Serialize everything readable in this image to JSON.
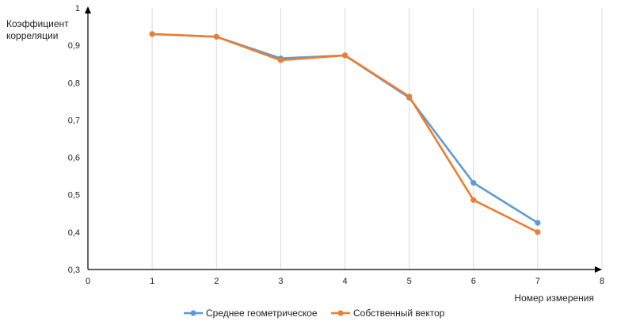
{
  "chart_data": {
    "type": "line",
    "xlabel": "Номер измерения",
    "ylabel": [
      "Коэффициент",
      "корреляции"
    ],
    "xlim": [
      0,
      8
    ],
    "ylim": [
      0.3,
      1
    ],
    "x_ticks": [
      "0",
      "1",
      "2",
      "3",
      "4",
      "5",
      "6",
      "7",
      "8"
    ],
    "y_ticks": [
      "0,3",
      "0,4",
      "0,5",
      "0,6",
      "0,7",
      "0,8",
      "0,9",
      "1"
    ],
    "grid": "vertical",
    "legend_position": "bottom",
    "x": [
      1,
      2,
      3,
      4,
      5,
      6,
      7
    ],
    "series": [
      {
        "name": "Среднее геометрическое",
        "color": "#5b9bd5",
        "values": [
          0.93,
          0.923,
          0.865,
          0.873,
          0.76,
          0.532,
          0.425
        ]
      },
      {
        "name": "Собственный вектор",
        "color": "#ed7d31",
        "values": [
          0.93,
          0.923,
          0.86,
          0.873,
          0.763,
          0.486,
          0.4
        ]
      }
    ]
  }
}
